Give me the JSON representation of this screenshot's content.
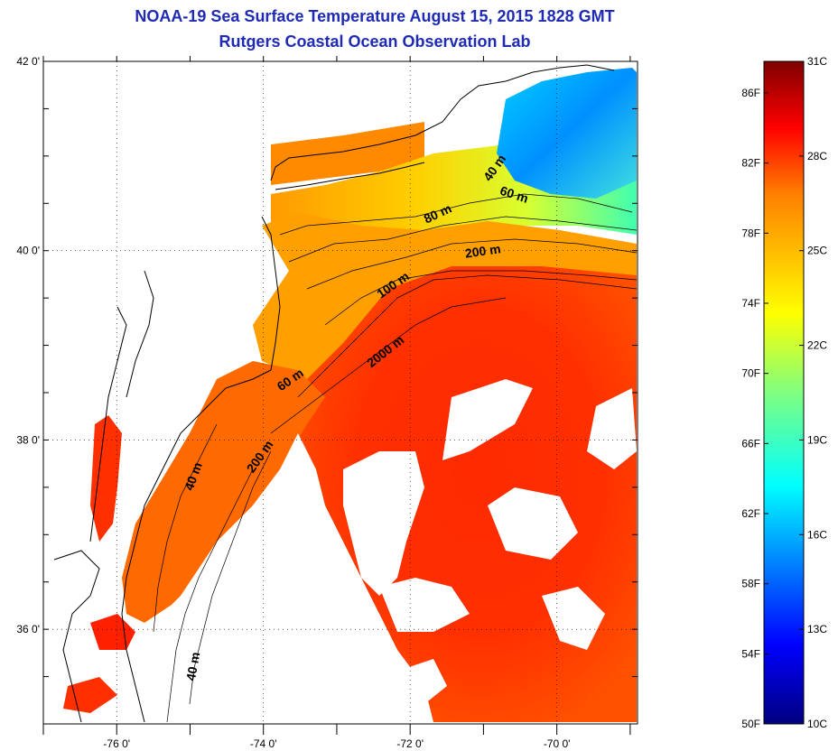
{
  "title": {
    "line1": "NOAA-19 Sea Surface Temperature August 15, 2015 1828 GMT",
    "line2": "Rutgers Coastal Ocean Observation Lab"
  },
  "map": {
    "lat_ticks": [
      {
        "value": 42,
        "label": "42 0'"
      },
      {
        "value": 40,
        "label": "40 0'"
      },
      {
        "value": 38,
        "label": "38 0'"
      },
      {
        "value": 36,
        "label": "36 0'"
      }
    ],
    "lon_ticks": [
      {
        "value": -76,
        "label": "-76 0'"
      },
      {
        "value": -74,
        "label": "-74 0'"
      },
      {
        "value": -72,
        "label": "-72 0'"
      },
      {
        "value": -70,
        "label": "-70 0'"
      }
    ],
    "lon_range": [
      -77.0,
      -68.9
    ],
    "lat_range": [
      35.0,
      42.0
    ],
    "contour_labels": [
      {
        "text": "40 m",
        "lon": -70.8,
        "lat": 40.85,
        "rot": -55
      },
      {
        "text": "60 m",
        "lon": -70.6,
        "lat": 40.55,
        "rot": 18
      },
      {
        "text": "80 m",
        "lon": -71.6,
        "lat": 40.35,
        "rot": -25
      },
      {
        "text": "200 m",
        "lon": -71.0,
        "lat": 39.95,
        "rot": -8
      },
      {
        "text": "100 m",
        "lon": -72.2,
        "lat": 39.6,
        "rot": -35
      },
      {
        "text": "2000 m",
        "lon": -72.3,
        "lat": 38.9,
        "rot": -38
      },
      {
        "text": "60 m",
        "lon": -73.6,
        "lat": 38.6,
        "rot": -35
      },
      {
        "text": "200 m",
        "lon": -74.0,
        "lat": 37.8,
        "rot": -55
      },
      {
        "text": "40 m",
        "lon": -74.9,
        "lat": 37.6,
        "rot": -70
      },
      {
        "text": "40 m",
        "lon": -74.9,
        "lat": 35.6,
        "rot": -80
      }
    ]
  },
  "colorbar": {
    "fahrenheit": [
      "86F",
      "82F",
      "78F",
      "74F",
      "70F",
      "66F",
      "62F",
      "58F",
      "54F",
      "50F"
    ],
    "fahrenheit_values": [
      86,
      82,
      78,
      74,
      70,
      66,
      62,
      58,
      54,
      50
    ],
    "celsius": [
      "31C",
      "28C",
      "25C",
      "22C",
      "19C",
      "16C",
      "13C",
      "10C"
    ],
    "celsius_values": [
      31,
      28,
      25,
      22,
      19,
      16,
      13,
      10
    ],
    "range_c": [
      10,
      31
    ],
    "colors": [
      "#00007f",
      "#0000ff",
      "#007fff",
      "#00ffff",
      "#7fff7f",
      "#ffff00",
      "#ff7f00",
      "#ff0000",
      "#7f0000"
    ]
  }
}
